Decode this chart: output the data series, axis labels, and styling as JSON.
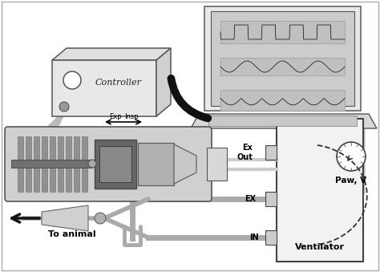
{
  "bg_color": "#ffffff",
  "labels": {
    "controller": "Controller",
    "ventilator": "Ventilator",
    "ex_out": "Ex\nOut",
    "ex": "EX",
    "in_label": "IN",
    "paw": "Paw, V̇",
    "exp": "Exp",
    "insp": "Insp",
    "to_animal": "To animal"
  },
  "colors": {
    "dark_gray": "#404040",
    "mid_gray": "#808080",
    "light_gray": "#c8c8c8",
    "very_light_gray": "#e8e8e8",
    "black": "#111111",
    "white": "#ffffff",
    "box_gray": "#d4d4d4",
    "connector_dark": "#1a1a1a",
    "tube_gray": "#aaaaaa"
  }
}
